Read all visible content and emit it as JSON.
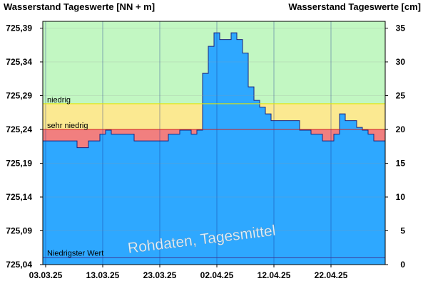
{
  "chart_data": {
    "type": "area",
    "left_axis_title": "Wasserstand Tageswerte [NN + m]",
    "right_axis_title": "Wasserstand Tageswerte [cm]",
    "watermark": "Rohdaten, Tagesmittel",
    "left_ticks": [
      "725,39",
      "725,34",
      "725,29",
      "725,24",
      "725,19",
      "725,14",
      "725,09",
      "725,04"
    ],
    "left_tick_values": [
      725.39,
      725.34,
      725.29,
      725.24,
      725.19,
      725.14,
      725.09,
      725.04
    ],
    "right_ticks": [
      "35",
      "30",
      "25",
      "20",
      "15",
      "10",
      "5",
      "0"
    ],
    "right_tick_values": [
      35,
      30,
      25,
      20,
      15,
      10,
      5,
      0
    ],
    "x_ticks": [
      "03.03.25",
      "13.03.25",
      "23.03.25",
      "02.04.25",
      "12.04.25",
      "22.04.25"
    ],
    "x_tick_days": [
      0,
      10,
      20,
      30,
      40,
      50
    ],
    "x_range": [
      -0.5,
      59.5
    ],
    "ylim_cm": [
      0,
      36
    ],
    "zones": [
      {
        "name": "",
        "from_cm": 23.8,
        "to_cm": 36,
        "color": "#c2f7c2"
      },
      {
        "name": "niedrig",
        "from_cm": 20,
        "to_cm": 23.8,
        "color": "#fbe991"
      },
      {
        "name": "sehr niedrig",
        "from_cm": 0,
        "to_cm": 20,
        "color": "#f17f7f"
      }
    ],
    "reference_lines": [
      {
        "name": "Niedrigster Wert",
        "value_cm": 1,
        "color": "#3b3b9c"
      }
    ],
    "series": [
      {
        "color": "#2ea8ff",
        "values": [
          18.3,
          18.3,
          18.3,
          18.3,
          18.3,
          18.3,
          17.3,
          17.3,
          18.3,
          18.3,
          19.3,
          19.9,
          19.3,
          19.3,
          19.3,
          19.3,
          18.3,
          18.3,
          18.3,
          18.3,
          18.3,
          18.3,
          19.3,
          19.3,
          19.9,
          19.9,
          19.3,
          19.9,
          28.3,
          32.3,
          34.3,
          33.3,
          33.3,
          34.3,
          33.3,
          31.3,
          26.3,
          24.3,
          23.3,
          22.3,
          21.3,
          21.3,
          21.3,
          21.3,
          21.3,
          19.9,
          19.9,
          19.3,
          19.3,
          18.3,
          18.3,
          19.3,
          22.3,
          21.3,
          21.3,
          20.3,
          19.9,
          19.3,
          18.3,
          18.3
        ]
      }
    ]
  }
}
